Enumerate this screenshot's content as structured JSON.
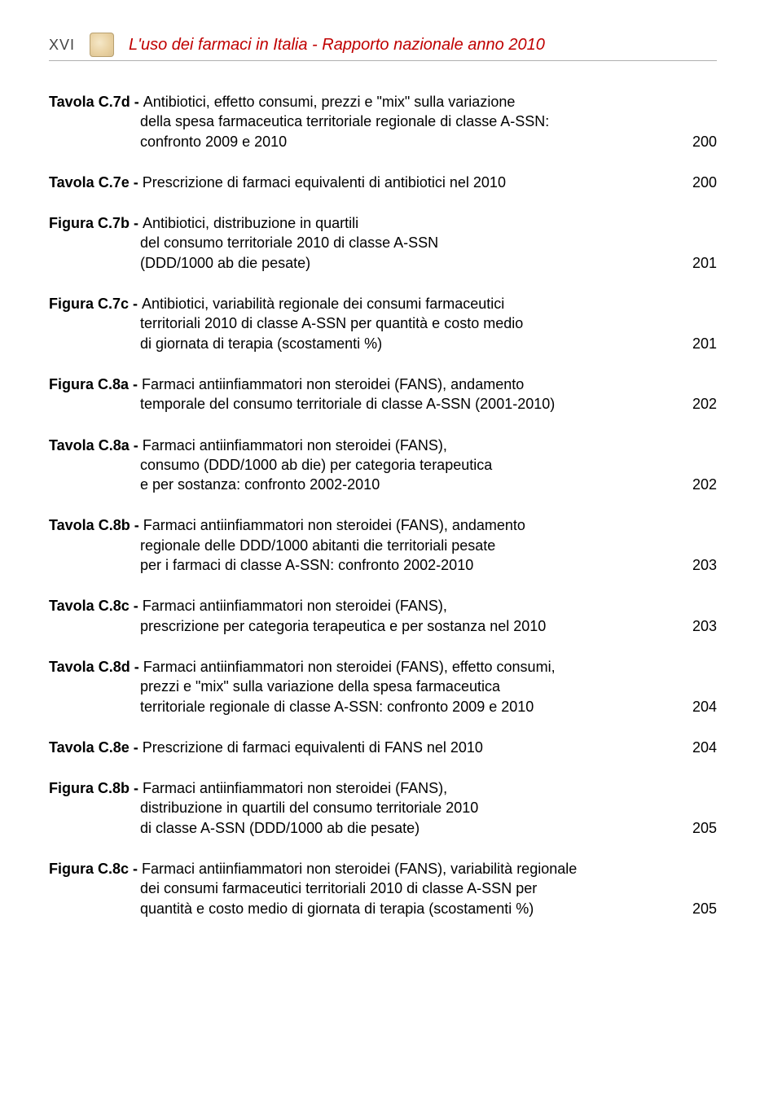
{
  "header": {
    "page_number": "XVI",
    "title": "L'uso dei farmaci in Italia - Rapporto nazionale anno 2010"
  },
  "entries": [
    {
      "label": "Tavola C.7d - ",
      "lines": [
        "Antibiotici, effetto consumi, prezzi e \"mix\" sulla variazione",
        "della spesa farmaceutica territoriale regionale di classe A-SSN:",
        "confronto 2009 e 2010"
      ],
      "page": "200"
    },
    {
      "label": "Tavola C.7e - ",
      "lines": [
        "Prescrizione di farmaci equivalenti di antibiotici nel 2010"
      ],
      "page": "200"
    },
    {
      "label": "Figura C.7b - ",
      "lines": [
        "Antibiotici, distribuzione in quartili",
        "del consumo territoriale 2010 di classe A-SSN",
        "(DDD/1000 ab die pesate)"
      ],
      "page": "201"
    },
    {
      "label": "Figura C.7c - ",
      "lines": [
        "Antibiotici, variabilità regionale dei consumi farmaceutici",
        "territoriali 2010 di classe A-SSN per quantità e costo medio",
        "di giornata di terapia (scostamenti %)"
      ],
      "page": "201"
    },
    {
      "label": "Figura C.8a - ",
      "lines": [
        "Farmaci antiinfiammatori non steroidei (FANS), andamento",
        "temporale del consumo territoriale di classe A-SSN (2001-2010)"
      ],
      "page": "202"
    },
    {
      "label": "Tavola C.8a - ",
      "lines": [
        "Farmaci antiinfiammatori non steroidei (FANS),",
        "consumo (DDD/1000 ab die) per categoria terapeutica",
        "e per sostanza: confronto 2002-2010"
      ],
      "page": "202"
    },
    {
      "label": "Tavola C.8b - ",
      "lines": [
        "Farmaci antiinfiammatori non steroidei (FANS), andamento",
        "regionale delle DDD/1000 abitanti die territoriali pesate",
        "per i farmaci di classe A-SSN: confronto 2002-2010"
      ],
      "page": "203"
    },
    {
      "label": "Tavola C.8c - ",
      "lines": [
        "Farmaci antiinfiammatori non steroidei (FANS),",
        "prescrizione per categoria terapeutica e per sostanza nel 2010"
      ],
      "page": "203"
    },
    {
      "label": "Tavola C.8d - ",
      "lines": [
        "Farmaci antiinfiammatori non steroidei (FANS), effetto consumi,",
        "prezzi e \"mix\" sulla variazione della spesa farmaceutica",
        "territoriale regionale di classe A-SSN: confronto 2009 e 2010"
      ],
      "page": "204"
    },
    {
      "label": "Tavola C.8e - ",
      "lines": [
        "Prescrizione di farmaci equivalenti di FANS nel 2010"
      ],
      "page": "204"
    },
    {
      "label": "Figura C.8b - ",
      "lines": [
        "Farmaci antiinfiammatori non steroidei (FANS),",
        "distribuzione in quartili del consumo territoriale 2010",
        "di classe A-SSN (DDD/1000 ab die pesate)"
      ],
      "page": "205"
    },
    {
      "label": "Figura C.8c - ",
      "lines": [
        "Farmaci antiinfiammatori non steroidei (FANS), variabilità regionale",
        "dei consumi farmaceutici territoriali 2010 di classe A-SSN per",
        "quantità e costo medio di giornata di terapia (scostamenti %)"
      ],
      "page": "205"
    }
  ]
}
